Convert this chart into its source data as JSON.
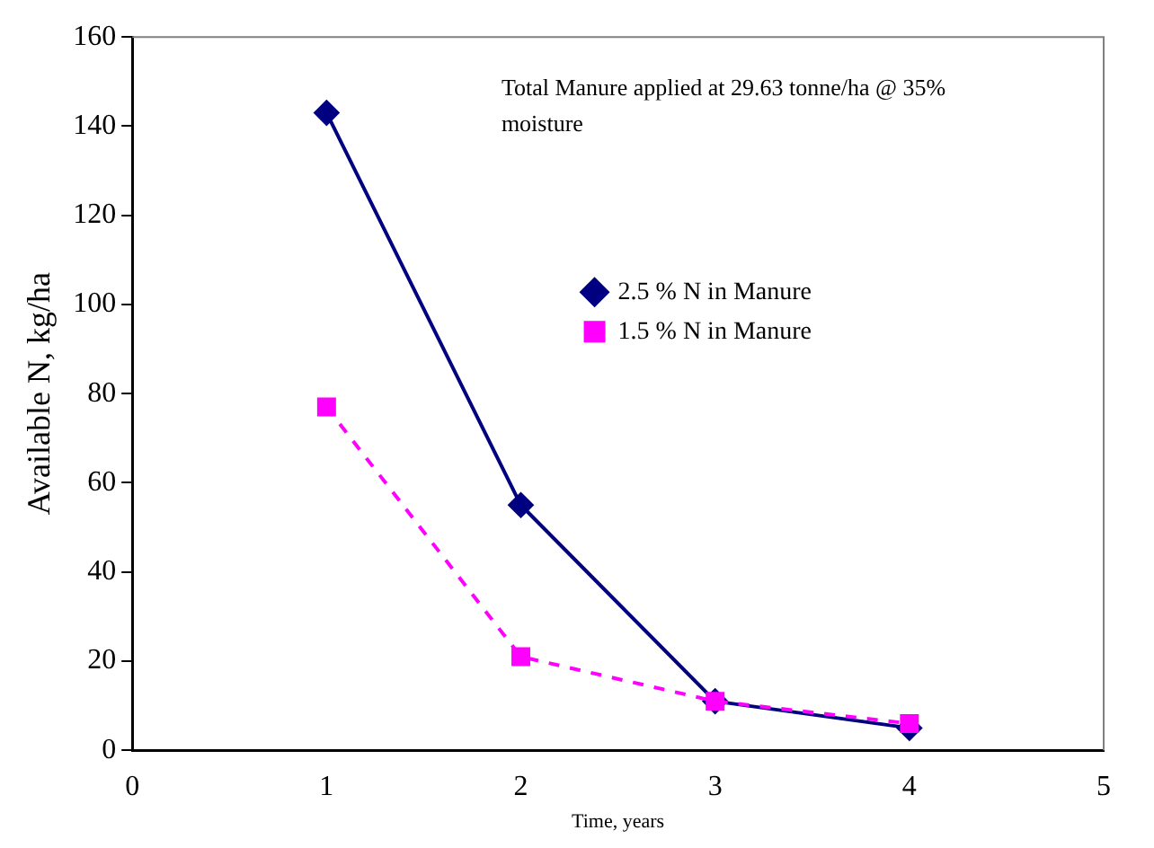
{
  "chart_data": {
    "type": "line",
    "xlabel": "Time, years",
    "ylabel": "Available N, kg/ha",
    "x": [
      1,
      2,
      3,
      4
    ],
    "series": [
      {
        "name": "2.5 % N in Manure",
        "color": "#000080",
        "values": [
          143,
          55,
          11,
          5
        ],
        "marker": "diamond",
        "line_style": "solid"
      },
      {
        "name": "1.5 % N in Manure",
        "color": "#ff00ff",
        "values": [
          77,
          21,
          11,
          6
        ],
        "marker": "square",
        "line_style": "dashed"
      }
    ],
    "xlim": [
      0,
      5
    ],
    "xticks": [
      0,
      1,
      2,
      3,
      4,
      5
    ],
    "ylim": [
      0,
      160
    ],
    "yticks": [
      0,
      20,
      40,
      60,
      80,
      100,
      120,
      140,
      160
    ],
    "grid": false,
    "legend": "right",
    "annotations": [
      "Total Manure applied at 29.63 tonne/ha @ 35% moisture"
    ]
  }
}
